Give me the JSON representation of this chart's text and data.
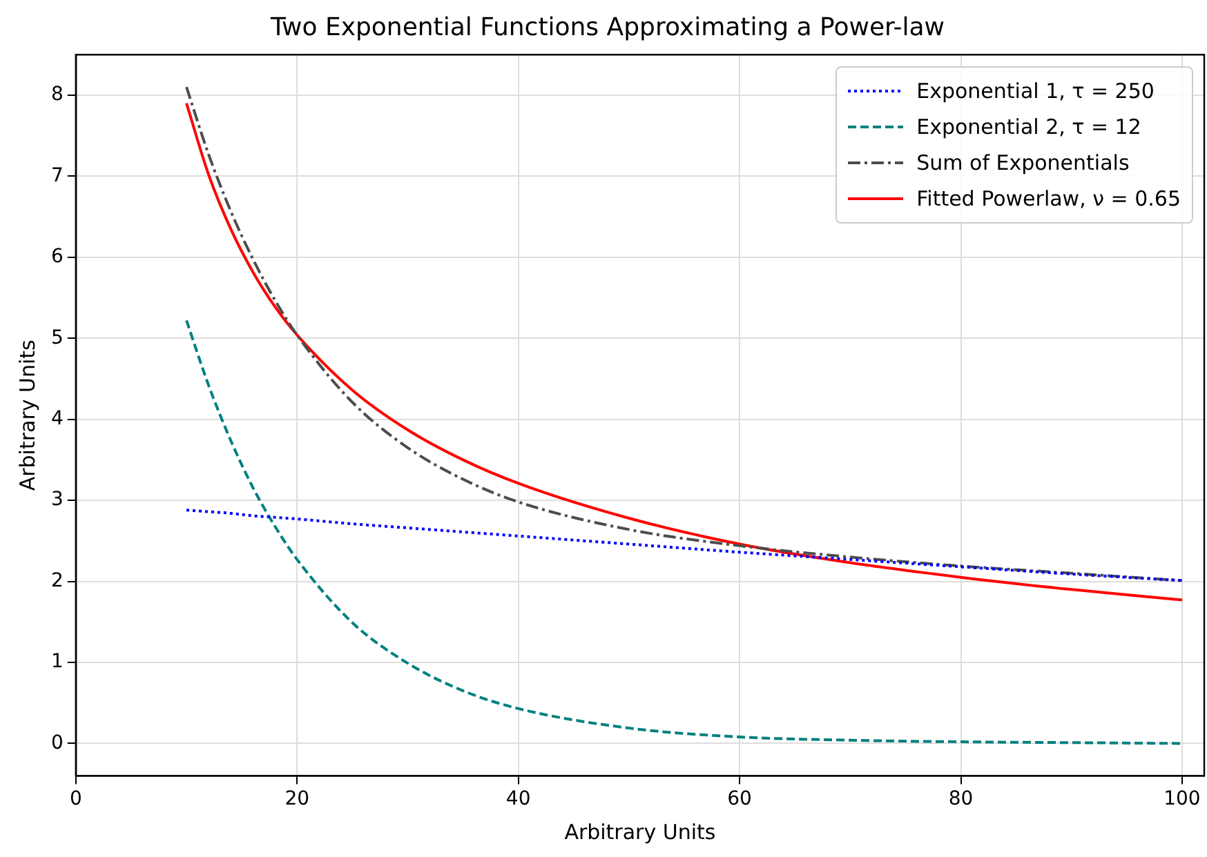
{
  "chart_data": {
    "type": "line",
    "title": "Two Exponential Functions Approximating a Power-law",
    "xlabel": "Arbitrary Units",
    "ylabel": "Arbitrary Units",
    "x": [
      10,
      12,
      14,
      16,
      18,
      20,
      25,
      30,
      35,
      40,
      50,
      60,
      70,
      80,
      90,
      100
    ],
    "series": [
      {
        "name": "Exponential 1, τ = 250",
        "color": "#0000ff",
        "line_style": "dotted",
        "values": [
          2.88,
          2.86,
          2.84,
          2.81,
          2.79,
          2.77,
          2.71,
          2.66,
          2.61,
          2.56,
          2.46,
          2.36,
          2.27,
          2.18,
          2.09,
          2.01
        ]
      },
      {
        "name": "Exponential 2, τ = 12",
        "color": "#008080",
        "line_style": "dashed",
        "values": [
          5.22,
          4.42,
          3.74,
          3.16,
          2.68,
          2.27,
          1.49,
          0.99,
          0.65,
          0.43,
          0.19,
          0.08,
          0.04,
          0.02,
          0.01,
          0.0
        ]
      },
      {
        "name": "Sum of Exponentials",
        "color": "#4d4d4d",
        "line_style": "dashdot",
        "values": [
          8.1,
          7.27,
          6.57,
          5.98,
          5.47,
          5.04,
          4.21,
          3.65,
          3.26,
          2.98,
          2.64,
          2.44,
          2.3,
          2.19,
          2.1,
          2.01
        ]
      },
      {
        "name": "Fitted Powerlaw, ν = 0.65",
        "color": "#ff0000",
        "line_style": "solid",
        "values": [
          7.9,
          7.02,
          6.35,
          5.82,
          5.39,
          5.04,
          4.36,
          3.87,
          3.5,
          3.21,
          2.78,
          2.46,
          2.23,
          2.05,
          1.9,
          1.77
        ]
      }
    ],
    "xlim": [
      0,
      102
    ],
    "xticks": [
      0,
      20,
      40,
      60,
      80,
      100
    ],
    "ylim": [
      -0.4,
      8.5
    ],
    "yticks": [
      0,
      1,
      2,
      3,
      4,
      5,
      6,
      7,
      8
    ],
    "grid": true,
    "legend": "top right",
    "marker": "none"
  }
}
